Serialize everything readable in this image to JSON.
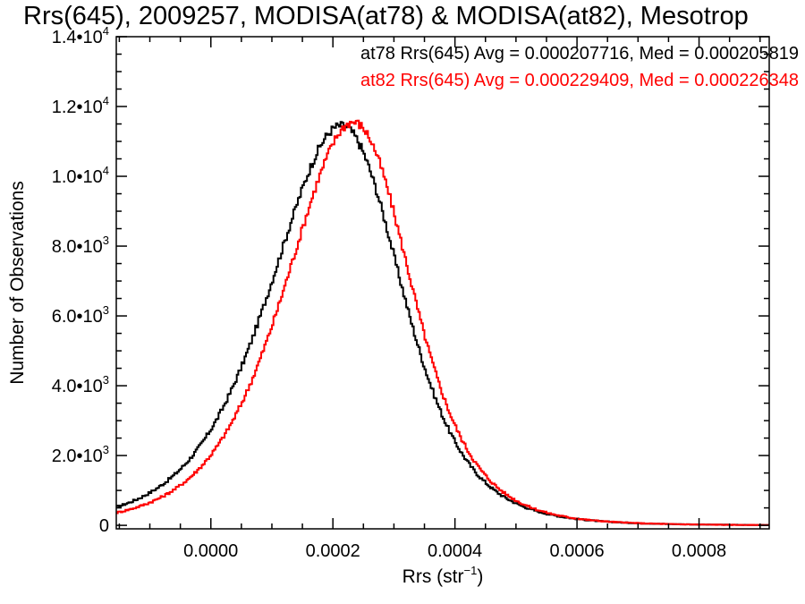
{
  "chart_data": {
    "type": "line",
    "title": "Rrs(645), 2009257, MODISA(at78) & MODISA(at82), Mesotrop",
    "xlabel": {
      "base": "Rrs (str",
      "sup": "−1",
      "tail": ")"
    },
    "ylabel": "Number of Observations",
    "xlim": [
      -0.000155,
      0.000915
    ],
    "ylim": [
      -100,
      14000
    ],
    "grid": false,
    "legend_placement": "top-right",
    "x_ticks": [
      {
        "value": 0.0,
        "label": "0.0000"
      },
      {
        "value": 0.0002,
        "label": "0.0002"
      },
      {
        "value": 0.0004,
        "label": "0.0004"
      },
      {
        "value": 0.0006,
        "label": "0.0006"
      },
      {
        "value": 0.0008,
        "label": "0.0008"
      }
    ],
    "y_ticks": [
      {
        "value": 0,
        "mant": "0",
        "exp": ""
      },
      {
        "value": 2000,
        "mant": "2.0•10",
        "exp": "3"
      },
      {
        "value": 4000,
        "mant": "4.0•10",
        "exp": "3"
      },
      {
        "value": 6000,
        "mant": "6.0•10",
        "exp": "3"
      },
      {
        "value": 8000,
        "mant": "8.0•10",
        "exp": "3"
      },
      {
        "value": 10000,
        "mant": "1.0•10",
        "exp": "4"
      },
      {
        "value": 12000,
        "mant": "1.2•10",
        "exp": "4"
      },
      {
        "value": 14000,
        "mant": "1.4•10",
        "exp": "4"
      }
    ],
    "series": [
      {
        "color": "#000000",
        "legend_text": "at78 Rrs(645) Avg = 0.000207716, Med = 0.000205819",
        "mean": 0.000207716,
        "median": 0.000205819,
        "peak_x": 0.000212,
        "peak_count": 11450,
        "spread": 0.0001105
      },
      {
        "color": "#ff0000",
        "legend_text": "at82 Rrs(645) Avg = 0.000229409, Med = 0.000226348",
        "mean": 0.000229409,
        "median": 0.000226348,
        "peak_x": 0.000232,
        "peak_count": 11550,
        "spread": 0.000106
      }
    ]
  }
}
